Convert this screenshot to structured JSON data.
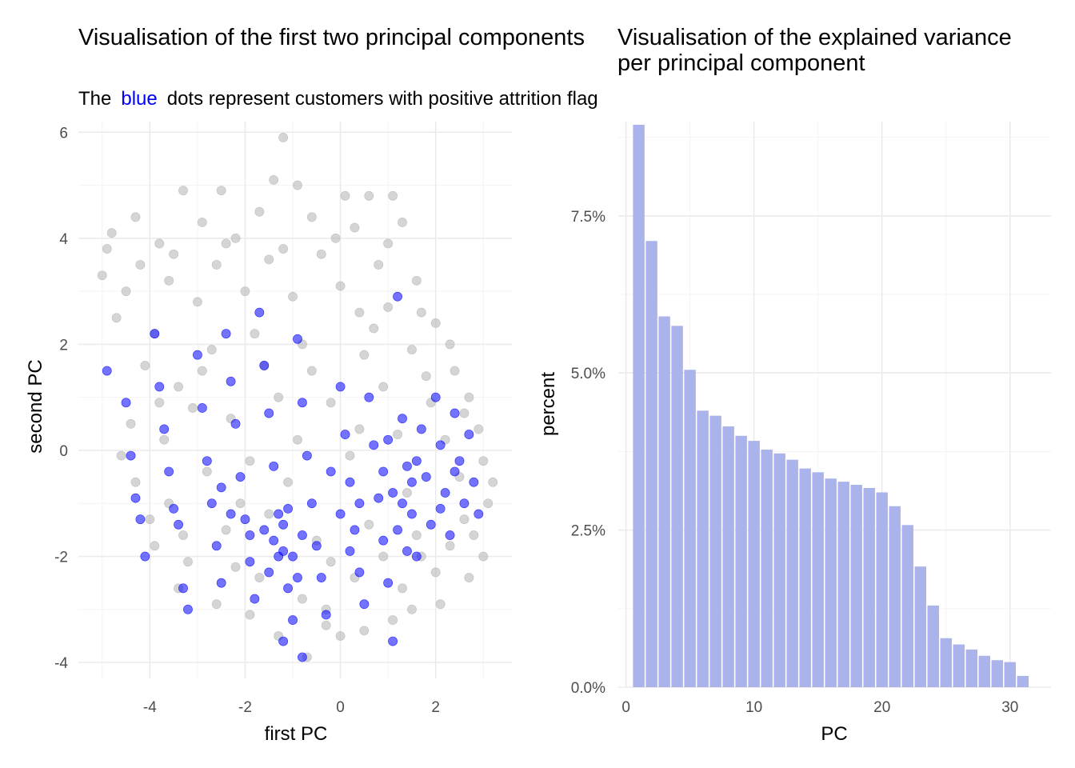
{
  "chart_data": [
    {
      "type": "scatter",
      "title": "Visualisation of the first two principal components",
      "subtitle": {
        "prefix": "The",
        "highlight": "blue",
        "suffix": "dots represent customers with positive attrition flag"
      },
      "xlabel": "first PC",
      "ylabel": "second PC",
      "xlim": [
        -5.5,
        3.6
      ],
      "ylim": [
        -4.3,
        6.2
      ],
      "xticks": [
        -4,
        -2,
        0,
        2
      ],
      "xtick_labels": [
        "-4",
        "-2",
        "0",
        "2"
      ],
      "yticks": [
        -4,
        -2,
        0,
        2,
        4,
        6
      ],
      "ytick_labels": [
        "-4",
        "-2",
        "0",
        "2",
        "4",
        "6"
      ],
      "grid": true,
      "series": [
        {
          "key": "negative",
          "color": "#b3b3b3",
          "opacity": 0.55,
          "points": [
            [
              -1.2,
              5.9
            ],
            [
              -3.3,
              4.9
            ],
            [
              -2.5,
              4.9
            ],
            [
              -1.4,
              5.1
            ],
            [
              -0.9,
              5.0
            ],
            [
              0.1,
              4.8
            ],
            [
              0.6,
              4.8
            ],
            [
              1.1,
              4.8
            ],
            [
              -4.8,
              4.1
            ],
            [
              -4.3,
              4.4
            ],
            [
              -3.8,
              3.9
            ],
            [
              -2.9,
              4.3
            ],
            [
              -2.2,
              4.0
            ],
            [
              -1.7,
              4.5
            ],
            [
              -0.6,
              4.4
            ],
            [
              0.3,
              4.2
            ],
            [
              1.3,
              4.3
            ],
            [
              -5.0,
              3.3
            ],
            [
              -4.5,
              3.0
            ],
            [
              -3.6,
              3.2
            ],
            [
              -2.6,
              3.5
            ],
            [
              -1.5,
              3.6
            ],
            [
              -0.4,
              3.7
            ],
            [
              0.8,
              3.5
            ],
            [
              1.6,
              3.2
            ],
            [
              -4.7,
              2.5
            ],
            [
              -3.9,
              2.2
            ],
            [
              -3.0,
              2.8
            ],
            [
              -2.0,
              3.0
            ],
            [
              -1.0,
              2.9
            ],
            [
              0.0,
              3.1
            ],
            [
              1.0,
              2.7
            ],
            [
              2.0,
              2.4
            ],
            [
              2.3,
              2.0
            ],
            [
              -4.1,
              1.6
            ],
            [
              -3.4,
              1.2
            ],
            [
              -2.7,
              1.9
            ],
            [
              -1.8,
              2.2
            ],
            [
              -0.8,
              2.0
            ],
            [
              0.5,
              1.8
            ],
            [
              1.5,
              1.9
            ],
            [
              2.4,
              1.5
            ],
            [
              2.7,
              1.0
            ],
            [
              -4.4,
              0.5
            ],
            [
              -3.7,
              0.2
            ],
            [
              -3.1,
              0.8
            ],
            [
              -2.3,
              0.6
            ],
            [
              -1.3,
              1.0
            ],
            [
              -0.2,
              0.9
            ],
            [
              0.9,
              1.2
            ],
            [
              1.9,
              0.9
            ],
            [
              2.9,
              0.4
            ],
            [
              3.0,
              -0.2
            ],
            [
              -4.3,
              -0.6
            ],
            [
              -3.6,
              -1.0
            ],
            [
              -2.8,
              -0.4
            ],
            [
              -1.9,
              -0.2
            ],
            [
              -0.9,
              0.2
            ],
            [
              0.2,
              -0.1
            ],
            [
              1.2,
              0.3
            ],
            [
              2.2,
              0.2
            ],
            [
              3.1,
              -1.0
            ],
            [
              -3.9,
              -1.8
            ],
            [
              -3.2,
              -2.1
            ],
            [
              -2.4,
              -1.5
            ],
            [
              -1.5,
              -1.2
            ],
            [
              -0.5,
              -1.7
            ],
            [
              0.6,
              -1.4
            ],
            [
              1.6,
              -1.6
            ],
            [
              2.6,
              -1.3
            ],
            [
              3.0,
              -2.0
            ],
            [
              -3.4,
              -2.6
            ],
            [
              -2.6,
              -2.9
            ],
            [
              -1.7,
              -2.4
            ],
            [
              -0.8,
              -2.8
            ],
            [
              0.3,
              -2.4
            ],
            [
              1.3,
              -2.6
            ],
            [
              2.1,
              -2.9
            ],
            [
              2.7,
              -2.4
            ],
            [
              -1.3,
              -3.5
            ],
            [
              -0.3,
              -3.3
            ],
            [
              0.5,
              -3.4
            ],
            [
              1.1,
              -3.2
            ],
            [
              -0.7,
              -3.9
            ],
            [
              0.0,
              -3.5
            ],
            [
              1.7,
              -2.0
            ],
            [
              2.5,
              -0.5
            ],
            [
              -0.6,
              1.5
            ],
            [
              0.7,
              2.3
            ],
            [
              1.8,
              1.4
            ],
            [
              -2.1,
              -1.0
            ],
            [
              -1.1,
              -0.6
            ],
            [
              0.4,
              0.4
            ],
            [
              1.4,
              -0.8
            ],
            [
              2.3,
              -1.8
            ],
            [
              -4.9,
              3.8
            ],
            [
              -4.2,
              3.5
            ],
            [
              -3.5,
              3.7
            ],
            [
              -2.4,
              3.9
            ],
            [
              -1.2,
              3.8
            ],
            [
              -0.1,
              4.0
            ],
            [
              1.0,
              3.9
            ],
            [
              0.4,
              2.6
            ],
            [
              1.7,
              2.6
            ],
            [
              -1.6,
              1.6
            ],
            [
              -2.9,
              1.5
            ],
            [
              -3.8,
              0.9
            ],
            [
              -4.6,
              -0.1
            ],
            [
              -4.0,
              -1.3
            ],
            [
              -3.3,
              -1.6
            ],
            [
              -2.2,
              -2.2
            ],
            [
              -0.2,
              -2.1
            ],
            [
              0.9,
              -2.0
            ],
            [
              2.0,
              -2.3
            ],
            [
              2.8,
              -1.6
            ],
            [
              3.2,
              -0.6
            ],
            [
              2.6,
              0.7
            ],
            [
              -0.3,
              -3.0
            ],
            [
              1.5,
              -3.0
            ],
            [
              -1.9,
              -3.1
            ]
          ]
        },
        {
          "key": "positive",
          "color": "#0000ff",
          "opacity": 0.55,
          "points": [
            [
              -4.9,
              1.5
            ],
            [
              -4.5,
              0.9
            ],
            [
              -4.4,
              -0.1
            ],
            [
              -4.3,
              -0.9
            ],
            [
              -4.2,
              -1.3
            ],
            [
              -4.1,
              -2.0
            ],
            [
              -3.9,
              2.2
            ],
            [
              -3.8,
              1.2
            ],
            [
              -3.7,
              0.4
            ],
            [
              -3.6,
              -0.4
            ],
            [
              -3.5,
              -1.1
            ],
            [
              -3.4,
              -1.4
            ],
            [
              -3.3,
              -2.6
            ],
            [
              -3.2,
              -3.0
            ],
            [
              -3.0,
              1.8
            ],
            [
              -2.9,
              0.8
            ],
            [
              -2.8,
              -0.2
            ],
            [
              -2.7,
              -1.0
            ],
            [
              -2.6,
              -1.8
            ],
            [
              -2.5,
              -2.5
            ],
            [
              -2.4,
              2.2
            ],
            [
              -2.3,
              1.3
            ],
            [
              -2.2,
              0.5
            ],
            [
              -2.1,
              -0.5
            ],
            [
              -2.0,
              -1.3
            ],
            [
              -1.9,
              -2.1
            ],
            [
              -1.8,
              -2.8
            ],
            [
              -1.7,
              2.6
            ],
            [
              -1.6,
              1.6
            ],
            [
              -1.5,
              0.7
            ],
            [
              -1.4,
              -0.3
            ],
            [
              -1.3,
              -1.2
            ],
            [
              -1.2,
              -1.9
            ],
            [
              -1.1,
              -2.6
            ],
            [
              -1.0,
              -3.2
            ],
            [
              -0.9,
              2.1
            ],
            [
              -0.8,
              0.9
            ],
            [
              -0.7,
              -0.1
            ],
            [
              -0.6,
              -1.0
            ],
            [
              -0.5,
              -1.8
            ],
            [
              -0.4,
              -2.4
            ],
            [
              -0.3,
              -3.1
            ],
            [
              -0.8,
              -3.9
            ],
            [
              -1.2,
              -3.6
            ],
            [
              0.0,
              1.2
            ],
            [
              0.1,
              0.3
            ],
            [
              0.2,
              -0.6
            ],
            [
              0.3,
              -1.5
            ],
            [
              0.4,
              -2.3
            ],
            [
              0.5,
              -2.9
            ],
            [
              0.6,
              1.0
            ],
            [
              0.7,
              0.1
            ],
            [
              0.8,
              -0.9
            ],
            [
              0.9,
              -1.7
            ],
            [
              1.0,
              -2.5
            ],
            [
              1.1,
              -3.6
            ],
            [
              1.2,
              2.9
            ],
            [
              1.3,
              0.6
            ],
            [
              1.4,
              -0.3
            ],
            [
              1.5,
              -1.2
            ],
            [
              1.6,
              -2.0
            ],
            [
              1.7,
              0.4
            ],
            [
              1.8,
              -0.5
            ],
            [
              1.9,
              -1.4
            ],
            [
              2.0,
              1.0
            ],
            [
              2.1,
              0.1
            ],
            [
              2.2,
              -0.8
            ],
            [
              2.3,
              -1.6
            ],
            [
              2.4,
              0.7
            ],
            [
              2.5,
              -0.2
            ],
            [
              2.6,
              -1.0
            ],
            [
              2.7,
              0.3
            ],
            [
              2.8,
              -0.6
            ],
            [
              2.9,
              -1.2
            ],
            [
              -1.6,
              -1.5
            ],
            [
              -1.4,
              -1.7
            ],
            [
              -1.2,
              -1.4
            ],
            [
              -1.0,
              -2.0
            ],
            [
              -0.8,
              -1.6
            ],
            [
              -1.5,
              -2.3
            ],
            [
              -1.3,
              -2.0
            ],
            [
              -1.1,
              -1.1
            ],
            [
              0.9,
              -0.4
            ],
            [
              1.1,
              -0.8
            ],
            [
              1.3,
              -1.0
            ],
            [
              1.5,
              -0.6
            ],
            [
              1.0,
              0.2
            ],
            [
              1.2,
              -1.5
            ],
            [
              0.4,
              -1.0
            ],
            [
              0.2,
              -1.9
            ],
            [
              1.6,
              -0.2
            ],
            [
              -2.3,
              -1.2
            ],
            [
              -2.5,
              -0.7
            ],
            [
              -0.2,
              -0.4
            ],
            [
              0.0,
              -1.2
            ],
            [
              1.4,
              -1.9
            ],
            [
              -1.9,
              -1.6
            ],
            [
              -0.9,
              -2.4
            ],
            [
              2.1,
              -1.1
            ],
            [
              2.4,
              -0.4
            ]
          ]
        }
      ]
    },
    {
      "type": "bar",
      "title": "Visualisation of the explained variance",
      "title_line2": "per principal component",
      "xlabel": "PC",
      "ylabel": "percent",
      "xlim": [
        -0.6,
        33.2
      ],
      "ylim": [
        0,
        9.0
      ],
      "xticks": [
        0,
        10,
        20,
        30
      ],
      "xtick_labels": [
        "0",
        "10",
        "20",
        "30"
      ],
      "yticks": [
        0,
        2.5,
        5.0,
        7.5
      ],
      "ytick_labels": [
        "0.0%",
        "2.5%",
        "5.0%",
        "7.5%"
      ],
      "grid": true,
      "bar_color": "#aab3ec",
      "categories": [
        1,
        2,
        3,
        4,
        5,
        6,
        7,
        8,
        9,
        10,
        11,
        12,
        13,
        14,
        15,
        16,
        17,
        18,
        19,
        20,
        21,
        22,
        23,
        24,
        25,
        26,
        27,
        28,
        29,
        30,
        31
      ],
      "values": [
        8.95,
        7.1,
        5.9,
        5.75,
        5.05,
        4.4,
        4.32,
        4.15,
        4.0,
        3.92,
        3.78,
        3.72,
        3.62,
        3.48,
        3.42,
        3.32,
        3.27,
        3.22,
        3.17,
        3.1,
        2.88,
        2.58,
        1.92,
        1.3,
        0.78,
        0.68,
        0.6,
        0.5,
        0.43,
        0.4,
        0.18
      ]
    }
  ]
}
